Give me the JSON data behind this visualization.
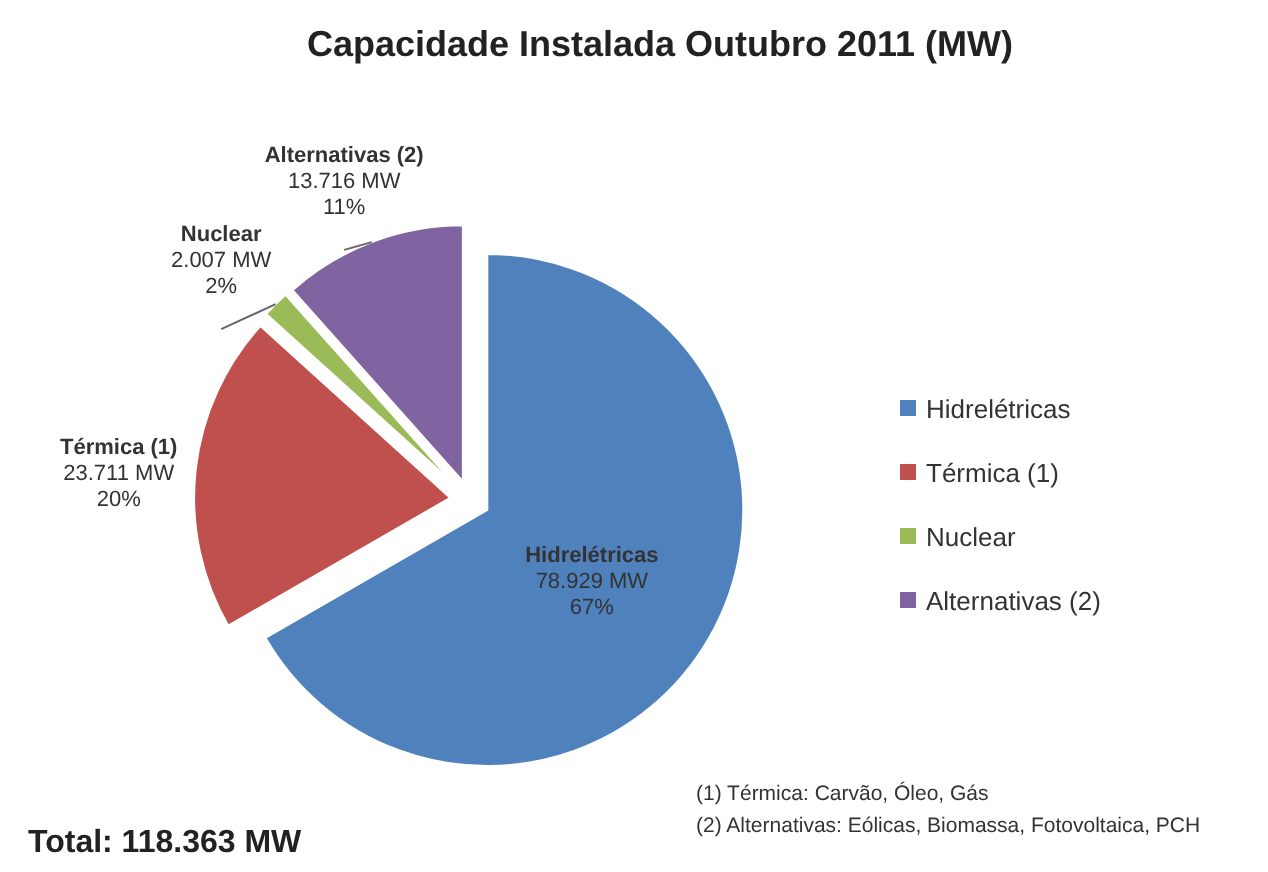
{
  "chart_data": {
    "type": "pie",
    "title": "Capacidade Instalada Outubro 2011 (MW)",
    "categories": [
      "Hidrelétricas",
      "Térmica (1)",
      "Nuclear",
      "Alternativas (2)"
    ],
    "values": [
      78929,
      23711,
      2007,
      13716
    ],
    "colors": [
      "#4f81bd",
      "#c0504d",
      "#9bbb59",
      "#8064a2"
    ],
    "value_labels": [
      "78.929 MW\n67%",
      "23.711 MW\n20%",
      "2.007 MW\n2%",
      "13.716 MW\n11%"
    ],
    "legend": "right",
    "annotations": [
      "(1) Térmica: Carvão, Óleo, Gás",
      "(2) Alternativas: Eólicas, Biomassa, Fotovoltaica, PCH",
      "Total: 118.363 MW"
    ]
  }
}
